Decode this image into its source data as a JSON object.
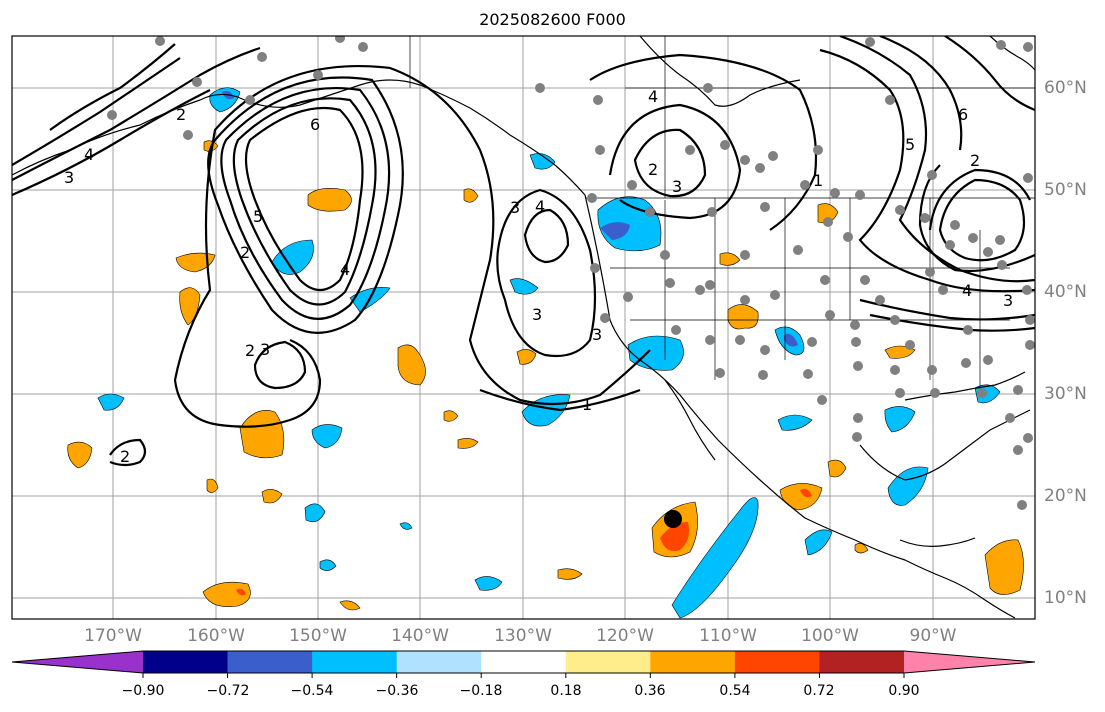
{
  "title": "2025082600 F000",
  "lon_labels": [
    "170°W",
    "160°W",
    "150°W",
    "140°W",
    "130°W",
    "120°W",
    "110°W",
    "100°W",
    "90°W"
  ],
  "lat_labels": [
    "60°N",
    "50°N",
    "40°N",
    "30°N",
    "20°N",
    "10°N"
  ],
  "colorbar": {
    "ticks": [
      "−0.90",
      "−0.72",
      "−0.54",
      "−0.36",
      "−0.18",
      "0.18",
      "0.36",
      "0.54",
      "0.72",
      "0.90"
    ],
    "colors": [
      "#9932cc",
      "#00008b",
      "#3a5fcd",
      "#00bfff",
      "#b0e2ff",
      "#ffffff",
      "#ffec8b",
      "#ffa500",
      "#ff4500",
      "#b22222",
      "#ff82ab"
    ]
  },
  "contour_labels": [
    "3",
    "2",
    "4",
    "6",
    "2",
    "5",
    "4",
    "3",
    "2",
    "3",
    "3",
    "4",
    "3",
    "2",
    "1",
    "4",
    "3",
    "2",
    "5",
    "4",
    "3",
    "6",
    "1",
    "2"
  ],
  "colors": {
    "orange": "#ffa500",
    "red": "#ff4500",
    "cyan": "#00bfff",
    "blue": "#3a5fcd",
    "grid": "#a0a0a0",
    "station": "#808080"
  }
}
